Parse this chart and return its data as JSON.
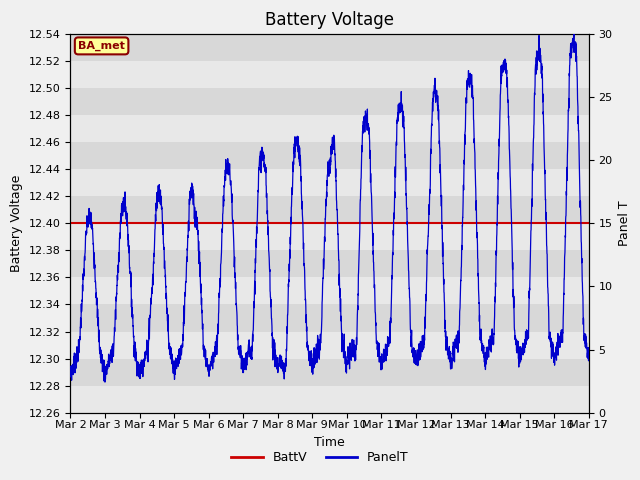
{
  "title": "Battery Voltage",
  "xlabel": "Time",
  "ylabel_left": "Battery Voltage",
  "ylabel_right": "Panel T",
  "ylim_left": [
    12.26,
    12.54
  ],
  "ylim_right": [
    0,
    30
  ],
  "xlim": [
    0,
    15
  ],
  "batt_v": 12.4,
  "batt_color": "#cc0000",
  "panel_color": "#0000cc",
  "bg_color": "#d8d8d8",
  "stripe_color": "#e8e8e8",
  "annotation_text": "BA_met",
  "annotation_bg": "#ffff99",
  "annotation_border": "#8B0000",
  "xtick_labels": [
    "Mar 2",
    "Mar 3",
    "Mar 4",
    "Mar 5",
    "Mar 6",
    "Mar 7",
    "Mar 8",
    "Mar 9",
    "Mar 10",
    "Mar 11",
    "Mar 12",
    "Mar 13",
    "Mar 14",
    "Mar 15",
    "Mar 16",
    "Mar 17"
  ],
  "yticks_left": [
    12.26,
    12.28,
    12.3,
    12.32,
    12.34,
    12.36,
    12.38,
    12.4,
    12.42,
    12.44,
    12.46,
    12.48,
    12.5,
    12.52,
    12.54
  ],
  "yticks_right": [
    0,
    5,
    10,
    15,
    20,
    25,
    30
  ],
  "title_fontsize": 12,
  "axis_label_fontsize": 9,
  "tick_fontsize": 8,
  "figsize": [
    6.4,
    4.8
  ],
  "dpi": 100
}
